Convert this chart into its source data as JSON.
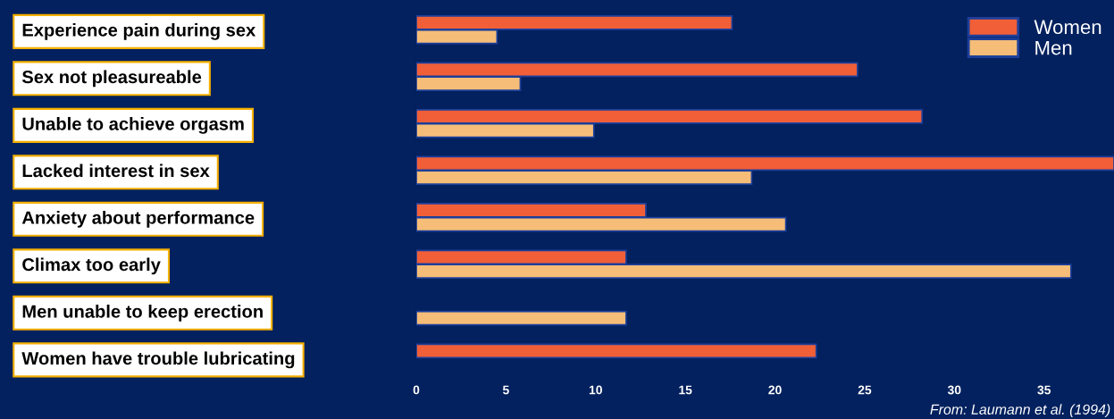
{
  "chart_data": {
    "type": "bar",
    "orientation": "horizontal",
    "categories": [
      "Experience pain during sex",
      "Sex not pleasureable",
      "Unable to achieve orgasm",
      "Lacked interest in sex",
      "Anxiety about performance",
      "Climax too early",
      "Men unable to keep erection",
      "Women have trouble lubricating"
    ],
    "series": [
      {
        "name": "Women",
        "color": "#f05f38",
        "values": [
          17.6,
          24.6,
          28.2,
          38.9,
          12.8,
          11.7,
          null,
          22.3
        ]
      },
      {
        "name": "Men",
        "color": "#f5bd78",
        "values": [
          4.5,
          5.8,
          9.9,
          18.7,
          20.6,
          36.5,
          11.7,
          null
        ]
      }
    ],
    "xlim": [
      0,
      38.9
    ],
    "xticks": [
      0,
      5,
      10,
      15,
      20,
      25,
      30,
      35
    ],
    "legend": "top right",
    "grid": false,
    "annotations": [
      "From: Laumann et al. (1994)"
    ]
  }
}
